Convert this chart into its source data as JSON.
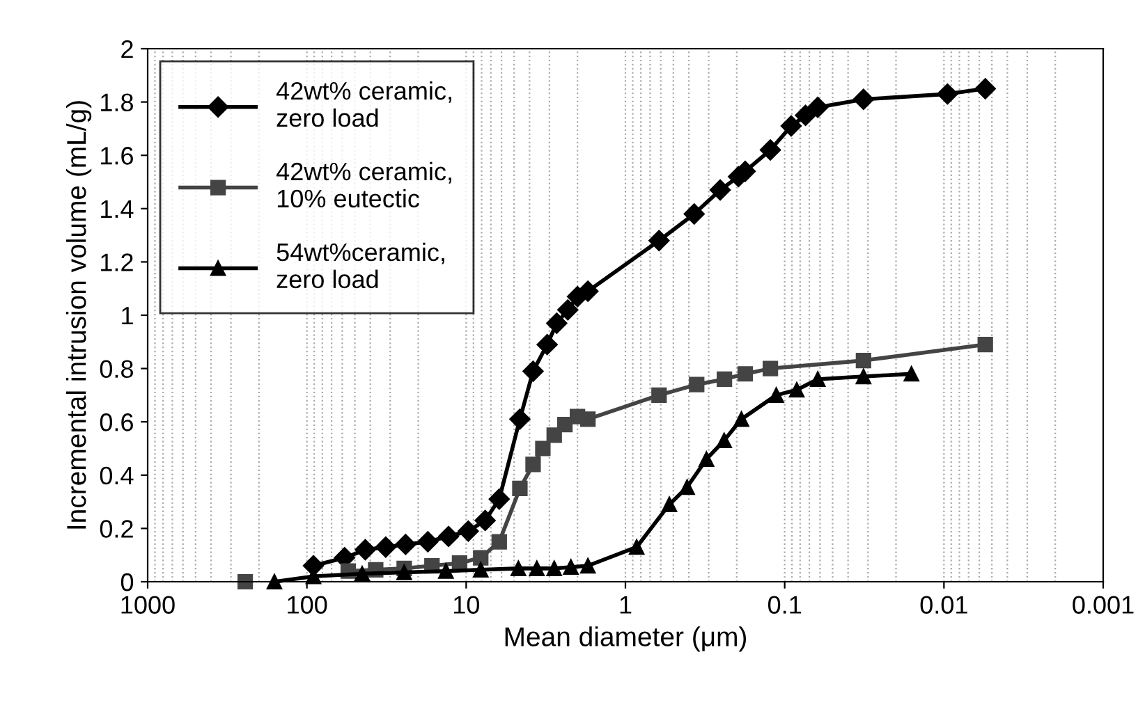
{
  "chart_data": {
    "type": "line",
    "xlabel": "Mean diameter (μm)",
    "ylabel": "Incremental intrusion volume (mL/g)",
    "log": "x",
    "xlim": [
      1000,
      0.001
    ],
    "xticks": [
      1000,
      100,
      10,
      1,
      0.1,
      0.01,
      0.001
    ],
    "ylim": [
      0,
      2
    ],
    "yticks": [
      0,
      0.2,
      0.4,
      0.6,
      0.8,
      1,
      1.2,
      1.4,
      1.6,
      1.8,
      2
    ],
    "grid": "x",
    "legend": "top left",
    "line_style": "solid",
    "series": [
      {
        "name": "42wt% ceramic, zero load",
        "color": "#000000",
        "marker": "diamond",
        "x": [
          91,
          58,
          43,
          32,
          24,
          17.4,
          12.9,
          9.7,
          7.6,
          6.2,
          4.6,
          3.8,
          3.1,
          2.7,
          2.3,
          2.0,
          1.72,
          0.615,
          0.37,
          0.254,
          0.195,
          0.177,
          0.123,
          0.091,
          0.074,
          0.062,
          0.032,
          0.0095,
          0.0055
        ],
        "values": [
          0.06,
          0.09,
          0.12,
          0.13,
          0.14,
          0.15,
          0.17,
          0.19,
          0.23,
          0.31,
          0.61,
          0.79,
          0.89,
          0.97,
          1.02,
          1.07,
          1.09,
          1.28,
          1.38,
          1.47,
          1.52,
          1.54,
          1.62,
          1.71,
          1.75,
          1.78,
          1.81,
          1.83,
          1.85
        ]
      },
      {
        "name": "42wt% ceramic, 10% eutectic",
        "color": "#444444",
        "marker": "square",
        "x": [
          244,
          89,
          55,
          37,
          24.5,
          16.4,
          11,
          8.1,
          6.2,
          4.6,
          3.8,
          3.3,
          2.8,
          2.4,
          2.0,
          1.72,
          0.615,
          0.357,
          0.239,
          0.177,
          0.123,
          0.032,
          0.0055
        ],
        "values": [
          0,
          null,
          0.04,
          0.045,
          0.05,
          0.06,
          0.07,
          0.09,
          0.15,
          0.35,
          0.44,
          0.5,
          0.55,
          0.59,
          0.62,
          0.61,
          0.7,
          0.74,
          0.76,
          0.78,
          0.8,
          0.83,
          0.89
        ]
      },
      {
        "name": "54wt%ceramic, zero load",
        "color": "#000000",
        "marker": "triangle",
        "x": [
          160,
          91,
          45,
          24.5,
          13.4,
          8.1,
          4.7,
          3.6,
          2.8,
          2.2,
          1.72,
          0.85,
          0.53,
          0.41,
          0.31,
          0.24,
          0.187,
          0.113,
          0.084,
          0.062,
          0.032,
          0.016
        ],
        "values": [
          0,
          0.02,
          0.03,
          0.035,
          0.04,
          0.045,
          0.05,
          0.05,
          0.05,
          0.055,
          0.06,
          0.13,
          0.29,
          0.355,
          0.46,
          0.53,
          0.61,
          0.7,
          0.72,
          0.76,
          0.77,
          0.78
        ]
      }
    ]
  }
}
